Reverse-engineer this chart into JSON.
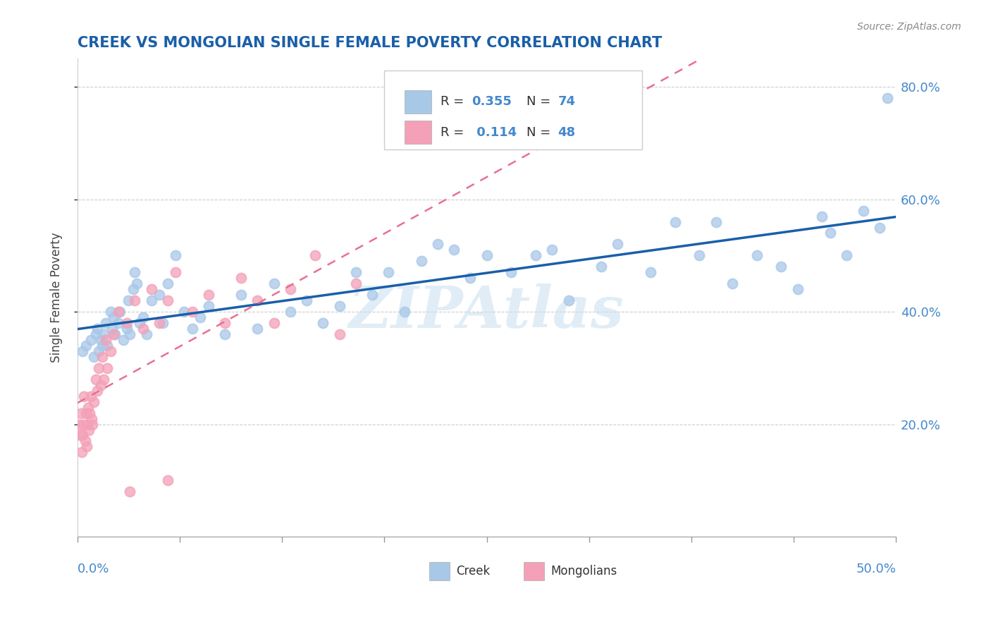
{
  "title": "CREEK VS MONGOLIAN SINGLE FEMALE POVERTY CORRELATION CHART",
  "source": "Source: ZipAtlas.com",
  "ylabel": "Single Female Poverty",
  "watermark": "ZIPAtlas",
  "creek_color": "#a8c8e8",
  "mongolian_color": "#f4a0b8",
  "trend_creek_color": "#1a5fa8",
  "trend_mongolian_color": "#e87090",
  "title_color": "#1a5fa8",
  "axis_label_color": "#4488cc",
  "background_color": "#ffffff",
  "watermark_color": "#c8dff0",
  "watermark_alpha": 0.55,
  "watermark_fontsize": 60,
  "creek_x": [
    0.3,
    0.5,
    0.8,
    1.0,
    1.1,
    1.2,
    1.3,
    1.4,
    1.5,
    1.6,
    1.7,
    1.8,
    2.0,
    2.1,
    2.2,
    2.3,
    2.5,
    2.6,
    2.8,
    3.0,
    3.1,
    3.2,
    3.4,
    3.5,
    3.6,
    3.8,
    4.0,
    4.2,
    4.5,
    5.0,
    5.2,
    5.5,
    6.0,
    6.5,
    7.0,
    7.5,
    8.0,
    9.0,
    10.0,
    11.0,
    12.0,
    13.0,
    14.0,
    15.0,
    16.0,
    17.0,
    18.0,
    19.0,
    20.0,
    21.0,
    22.0,
    23.0,
    24.0,
    25.0,
    26.5,
    28.0,
    29.0,
    30.0,
    32.0,
    33.0,
    35.0,
    36.5,
    38.0,
    39.0,
    40.0,
    41.5,
    43.0,
    44.0,
    45.5,
    46.0,
    47.0,
    48.0,
    49.0,
    49.5
  ],
  "creek_y": [
    33.0,
    34.0,
    35.0,
    32.0,
    36.0,
    37.0,
    33.0,
    35.0,
    34.0,
    36.0,
    38.0,
    34.0,
    40.0,
    37.0,
    39.0,
    36.0,
    38.0,
    40.0,
    35.0,
    37.0,
    42.0,
    36.0,
    44.0,
    47.0,
    45.0,
    38.0,
    39.0,
    36.0,
    42.0,
    43.0,
    38.0,
    45.0,
    50.0,
    40.0,
    37.0,
    39.0,
    41.0,
    36.0,
    43.0,
    37.0,
    45.0,
    40.0,
    42.0,
    38.0,
    41.0,
    47.0,
    43.0,
    47.0,
    40.0,
    49.0,
    52.0,
    51.0,
    46.0,
    50.0,
    47.0,
    50.0,
    51.0,
    42.0,
    48.0,
    52.0,
    47.0,
    56.0,
    50.0,
    56.0,
    45.0,
    50.0,
    48.0,
    44.0,
    57.0,
    54.0,
    50.0,
    58.0,
    55.0,
    78.0
  ],
  "mongolian_x": [
    0.1,
    0.15,
    0.2,
    0.25,
    0.3,
    0.35,
    0.4,
    0.45,
    0.5,
    0.55,
    0.6,
    0.65,
    0.7,
    0.75,
    0.8,
    0.85,
    0.9,
    1.0,
    1.1,
    1.2,
    1.3,
    1.4,
    1.5,
    1.6,
    1.7,
    1.8,
    2.0,
    2.2,
    2.5,
    3.0,
    3.5,
    4.0,
    4.5,
    5.0,
    5.5,
    6.0,
    7.0,
    8.0,
    9.0,
    10.0,
    11.0,
    12.0,
    13.0,
    14.5,
    16.0,
    17.0,
    5.5,
    3.2
  ],
  "mongolian_y": [
    20.0,
    18.0,
    22.0,
    15.0,
    18.0,
    20.0,
    25.0,
    17.0,
    22.0,
    16.0,
    20.0,
    23.0,
    19.0,
    22.0,
    25.0,
    21.0,
    20.0,
    24.0,
    28.0,
    26.0,
    30.0,
    27.0,
    32.0,
    28.0,
    35.0,
    30.0,
    33.0,
    36.0,
    40.0,
    38.0,
    42.0,
    37.0,
    44.0,
    38.0,
    42.0,
    47.0,
    40.0,
    43.0,
    38.0,
    46.0,
    42.0,
    38.0,
    44.0,
    50.0,
    36.0,
    45.0,
    10.0,
    8.0
  ],
  "xlim": [
    0.0,
    50.0
  ],
  "ylim": [
    0.0,
    85.0
  ],
  "ytick_vals": [
    20,
    40,
    60,
    80
  ],
  "ytick_labels": [
    "20.0%",
    "40.0%",
    "60.0%",
    "80.0%"
  ],
  "n_xticks": 9,
  "title_fontsize": 15,
  "legend_box_color": "#f0f4f8"
}
